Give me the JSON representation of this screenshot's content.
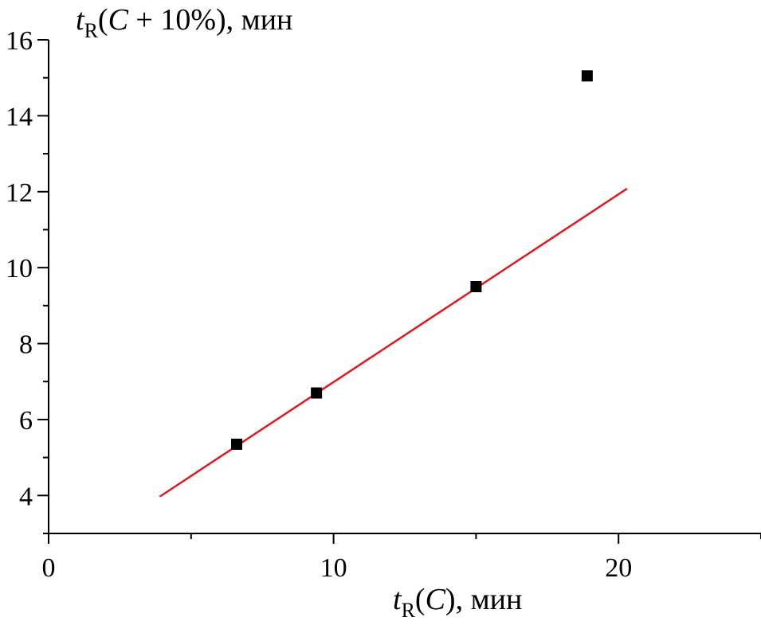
{
  "chart_data": {
    "type": "scatter",
    "title": "",
    "y_axis_label": {
      "var": "t",
      "sub": "R",
      "paren_open": "(",
      "arg": "C",
      "rest": " + 10%), мин"
    },
    "x_axis_label": {
      "var": "t",
      "sub": "R",
      "paren_open": "(",
      "arg": "C",
      "rest": "), мин"
    },
    "xlim": [
      0,
      25
    ],
    "ylim": [
      3,
      16
    ],
    "x_ticks": [
      0,
      10,
      20
    ],
    "y_ticks": [
      4,
      6,
      8,
      10,
      12,
      14,
      16
    ],
    "x_minor_step": 5,
    "y_minor_step": 1,
    "grid": false,
    "series": [
      {
        "kind": "points",
        "marker": "square",
        "color": "#000000",
        "x": [
          6.6,
          9.4,
          15.0,
          18.9
        ],
        "y": [
          5.35,
          6.7,
          9.5,
          15.05
        ]
      },
      {
        "kind": "fit-line",
        "color": "#e0191f",
        "x": [
          3.9,
          20.3
        ],
        "y": [
          3.97,
          12.08
        ]
      }
    ]
  }
}
